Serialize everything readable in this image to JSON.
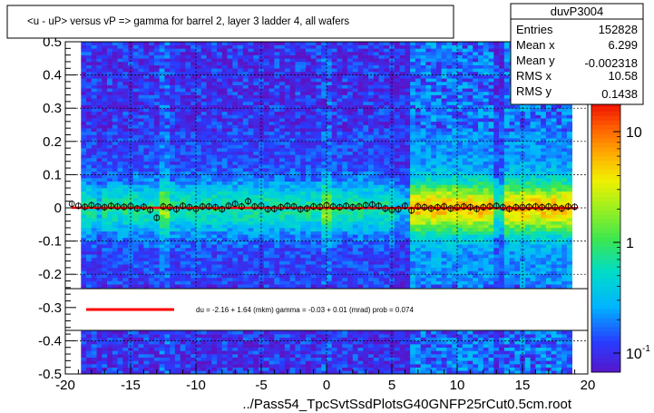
{
  "chart_data": {
    "type": "heatmap",
    "title": "<u - uP>       versus   vP =>  gamma for barrel 2, layer 3 ladder 4, all wafers",
    "xlabel": "../Pass54_TpcSvtSsdPlotsG40GNFP25rCut0.5cm.root",
    "ylabel": "",
    "xlim": [
      -20,
      20
    ],
    "ylim": [
      -0.5,
      0.5
    ],
    "x_ticks": [
      "-20",
      "-15",
      "-10",
      "-5",
      "0",
      "5",
      "10",
      "15",
      "20"
    ],
    "y_ticks": [
      "-0.5",
      "-0.4",
      "-0.3",
      "-0.2",
      "-0.1",
      "0",
      "0.1",
      "0.2",
      "0.3",
      "0.4",
      "0.5"
    ],
    "grid": true,
    "stats": {
      "name": "duvP3004",
      "rows": [
        {
          "label": "Entries",
          "value": "152828"
        },
        {
          "label": "Mean x",
          "value": "6.299"
        },
        {
          "label": "Mean y",
          "value": "-0.002318"
        },
        {
          "label": "RMS x",
          "value": "10.58"
        },
        {
          "label": "RMS y",
          "value": "0.1438"
        }
      ]
    },
    "colorbar": {
      "scale": "log",
      "labels": [
        "10",
        "1",
        "10"
      ],
      "label_exponents": [
        "",
        "",
        "-1"
      ]
    },
    "fit_legend": "du =    -2.16 +   1.64 (mkm) gamma =    -0.03 +   0.01 (mrad) prob = 0.074",
    "fit": {
      "intercept_mkm": -2.16,
      "slope_mrad": -0.03
    },
    "profile_points": {
      "x": [
        -19.5,
        -19,
        -18.5,
        -18,
        -17.5,
        -17,
        -16.5,
        -16,
        -15.5,
        -15,
        -14.5,
        -14,
        -13.5,
        -13,
        -12.5,
        -12,
        -11.5,
        -11,
        -10.5,
        -10,
        -9.5,
        -9,
        -8.5,
        -8,
        -7.5,
        -7,
        -6.5,
        -6,
        -5.5,
        -5,
        -4.5,
        -4,
        -3.5,
        -3,
        -2.5,
        -2,
        -1.5,
        -1,
        -0.5,
        0,
        0.5,
        1,
        1.5,
        2,
        2.5,
        3,
        3.5,
        4,
        4.5,
        5,
        5.5,
        6,
        6.5,
        7,
        7.5,
        8,
        8.5,
        9,
        9.5,
        10,
        10.5,
        11,
        11.5,
        12,
        12.5,
        13,
        13.5,
        14,
        14.5,
        15,
        15.5,
        16,
        16.5,
        17,
        17.5,
        18,
        18.5,
        19
      ],
      "y": [
        0.012,
        0.006,
        0.003,
        0.008,
        0.004,
        0.002,
        0.006,
        0.004,
        0.003,
        0.005,
        -0.002,
        0.003,
        -0.006,
        -0.03,
        0.004,
        0.002,
        -0.004,
        0.006,
        0.002,
        -0.003,
        0.004,
        0.004,
        0.002,
        -0.004,
        0.006,
        0.012,
        0.004,
        0.02,
        0.004,
        0.006,
        -0.004,
        -0.003,
        0.002,
        0.006,
        0.004,
        -0.004,
        -0.002,
        0.004,
        0.003,
        0.008,
        0.004,
        0.002,
        0.006,
        0.002,
        0.004,
        0.008,
        0.01,
        0.006,
        -0.002,
        -0.006,
        -0.004,
        0.006,
        -0.008,
        0.004,
        0.002,
        -0.002,
        0.002,
        0.004,
        -0.002,
        0.002,
        0.004,
        0.002,
        -0.003,
        0.002,
        0.004,
        0.006,
        0.002,
        -0.003,
        0.002,
        0.002,
        0.003,
        0.004,
        0.002,
        0.004,
        0.002,
        -0.002,
        0.004,
        0.003
      ]
    }
  }
}
